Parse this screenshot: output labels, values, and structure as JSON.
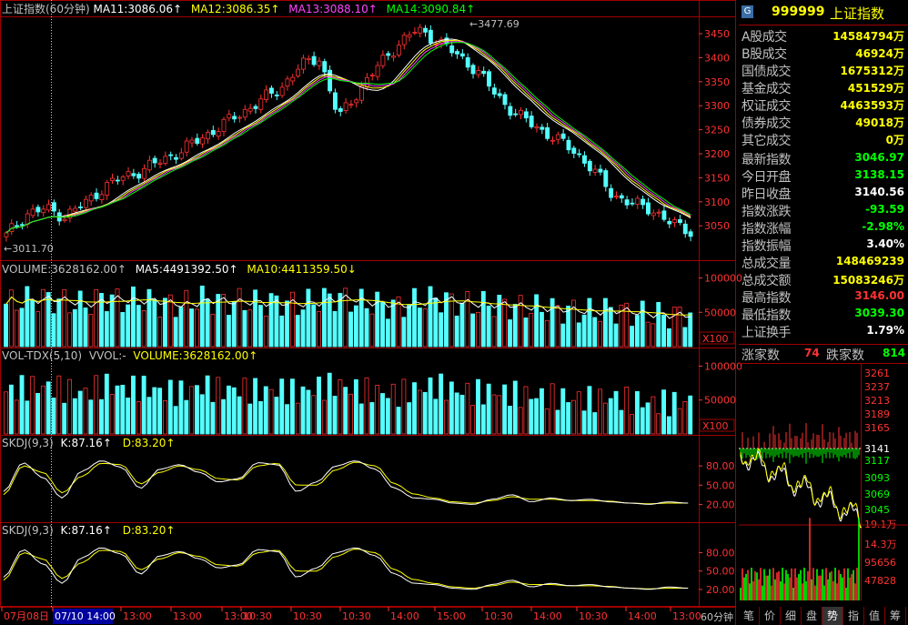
{
  "colors": {
    "up": "#ff3232",
    "down": "#54ffff",
    "ma11": "#ffffff",
    "ma12": "#ffff00",
    "ma13": "#ff44ff",
    "ma14": "#00ff00",
    "frame": "#a00000",
    "axis": "#ff3232",
    "green": "#00ff00",
    "yellow": "#ffff00",
    "white": "#ffffff"
  },
  "header": {
    "title": "上证指数(60分钟)",
    "ma11": "MA11:3086.06↑",
    "ma12": "MA12:3086.35↑",
    "ma13": "MA13:3088.10↑",
    "ma14": "MA14:3090.84↑"
  },
  "main_panel": {
    "high_marker": "3477.69",
    "low_marker": "3011.70",
    "y_ticks": [
      "3450",
      "3400",
      "3350",
      "3300",
      "3250",
      "3200",
      "3150",
      "3100",
      "3050"
    ]
  },
  "volume_panel": {
    "label": "VOLUME:3628162.00↑",
    "ma5": "MA5:4491392.50↑",
    "ma10": "MA10:4411359.50↓",
    "y_ticks": [
      "100000",
      "50000"
    ],
    "unit": "X100"
  },
  "voltdx_panel": {
    "label": "VOL-TDX(5,10)",
    "sub": "VVOL:-",
    "volume": "VOLUME:3628162.00↑",
    "y_ticks": [
      "100000",
      "50000"
    ],
    "unit": "X100"
  },
  "skdj1": {
    "label": "SKDJ(9,3)",
    "k": "K:87.16↑",
    "d": "D:83.20↑",
    "y_ticks": [
      "80.00",
      "50.00",
      "20.00"
    ]
  },
  "skdj2": {
    "label": "SKDJ(9,3)",
    "k": "K:87.16↑",
    "d": "D:83.20↑",
    "y_ticks": [
      "80.00",
      "50.00",
      "20.00"
    ]
  },
  "x_axis": {
    "labels": [
      "07月08日",
      "07/10 14:00",
      "13:00",
      "13:00",
      "13:00",
      "10:30",
      "10:30",
      "10:30",
      "14:00",
      "10:30",
      "15:00",
      "10:30",
      "14:00",
      "10:30",
      "14:00",
      "10:30",
      "14:00",
      "10:30",
      "14:00",
      "13:00"
    ],
    "period": "60分钟"
  },
  "chart_data": {
    "type": "candlestick",
    "series": [
      {
        "name": "MA11",
        "value": 3086.06
      },
      {
        "name": "MA12",
        "value": 3086.35
      },
      {
        "name": "MA13",
        "value": 3088.1
      },
      {
        "name": "MA14",
        "value": 3090.84
      }
    ],
    "ylim": [
      3011.7,
      3477.69
    ],
    "volume": 3628162.0,
    "volume_ma5": 4491392.5,
    "volume_ma10": 4411359.5,
    "skdj_k": 87.16,
    "skdj_d": 83.2,
    "close_path": [
      3040,
      3085,
      3095,
      3080,
      3105,
      3140,
      3160,
      3175,
      3195,
      3215,
      3240,
      3265,
      3290,
      3315,
      3340,
      3385,
      3405,
      3280,
      3335,
      3385,
      3430,
      3460,
      3440,
      3410,
      3380,
      3330,
      3290,
      3265,
      3240,
      3215,
      3175,
      3125,
      3105,
      3095,
      3065,
      3050
    ],
    "volume_bars": [
      52,
      58,
      60,
      55,
      50,
      62,
      56,
      58,
      52,
      50,
      60,
      54,
      56,
      52,
      55,
      50,
      58,
      62,
      54,
      52,
      48,
      56,
      60,
      54,
      50,
      52,
      48,
      46,
      44,
      42,
      40,
      44,
      38,
      36,
      35,
      38
    ],
    "k_wave": [
      40,
      85,
      62,
      30,
      72,
      88,
      78,
      45,
      75,
      82,
      70,
      55,
      60,
      85,
      82,
      40,
      55,
      80,
      88,
      75,
      45,
      30,
      28,
      22,
      20,
      28,
      35,
      24,
      30,
      26,
      28,
      24,
      22,
      20,
      24,
      22
    ],
    "d_wave": [
      35,
      80,
      70,
      38,
      64,
      84,
      82,
      52,
      70,
      80,
      74,
      60,
      58,
      80,
      84,
      50,
      50,
      74,
      86,
      80,
      52,
      36,
      30,
      24,
      22,
      26,
      32,
      28,
      28,
      26,
      26,
      25,
      22,
      21,
      22,
      22
    ]
  },
  "right_panel": {
    "code": "999999",
    "name": "上证指数",
    "rows": [
      {
        "label": "A股成交",
        "value": "14584794万",
        "color": "#ffff00"
      },
      {
        "label": "B股成交",
        "value": "46924万",
        "color": "#ffff00"
      },
      {
        "label": "国债成交",
        "value": "1675312万",
        "color": "#ffff00"
      },
      {
        "label": "基金成交",
        "value": "451529万",
        "color": "#ffff00"
      },
      {
        "label": "权证成交",
        "value": "4463593万",
        "color": "#ffff00"
      },
      {
        "label": "债券成交",
        "value": "49018万",
        "color": "#ffff00"
      },
      {
        "label": "其它成交",
        "value": "0万",
        "color": "#ffff00"
      },
      {
        "label": "最新指数",
        "value": "3046.97",
        "color": "#00ff00"
      },
      {
        "label": "今日开盘",
        "value": "3138.15",
        "color": "#00ff00"
      },
      {
        "label": "昨日收盘",
        "value": "3140.56",
        "color": "#ffffff"
      },
      {
        "label": "指数涨跌",
        "value": "-93.59",
        "color": "#00ff00"
      },
      {
        "label": "指数涨幅",
        "value": "-2.98%",
        "color": "#00ff00"
      },
      {
        "label": "指数振幅",
        "value": "3.40%",
        "color": "#ffffff"
      },
      {
        "label": "总成交量",
        "value": "148469239",
        "color": "#ffff00"
      },
      {
        "label": "总成交额",
        "value": "15083246万",
        "color": "#ffff00"
      },
      {
        "label": "最高指数",
        "value": "3146.00",
        "color": "#ff3232"
      },
      {
        "label": "最低指数",
        "value": "3039.30",
        "color": "#00ff00"
      },
      {
        "label": "上证换手",
        "value": "1.79%",
        "color": "#ffffff"
      }
    ],
    "up_label": "涨家数",
    "up_count": "74",
    "down_label": "跌家数",
    "down_count": "814",
    "mini_ticks": [
      "3261",
      "3237",
      "3213",
      "3189",
      "3165",
      "3141",
      "3117",
      "3093",
      "3069",
      "3045",
      "19.1万",
      "14.3万",
      "95656",
      "47828"
    ],
    "tabs": [
      "笔",
      "价",
      "细",
      "盘",
      "势",
      "指",
      "值",
      "筹"
    ],
    "active_tab": "势"
  }
}
